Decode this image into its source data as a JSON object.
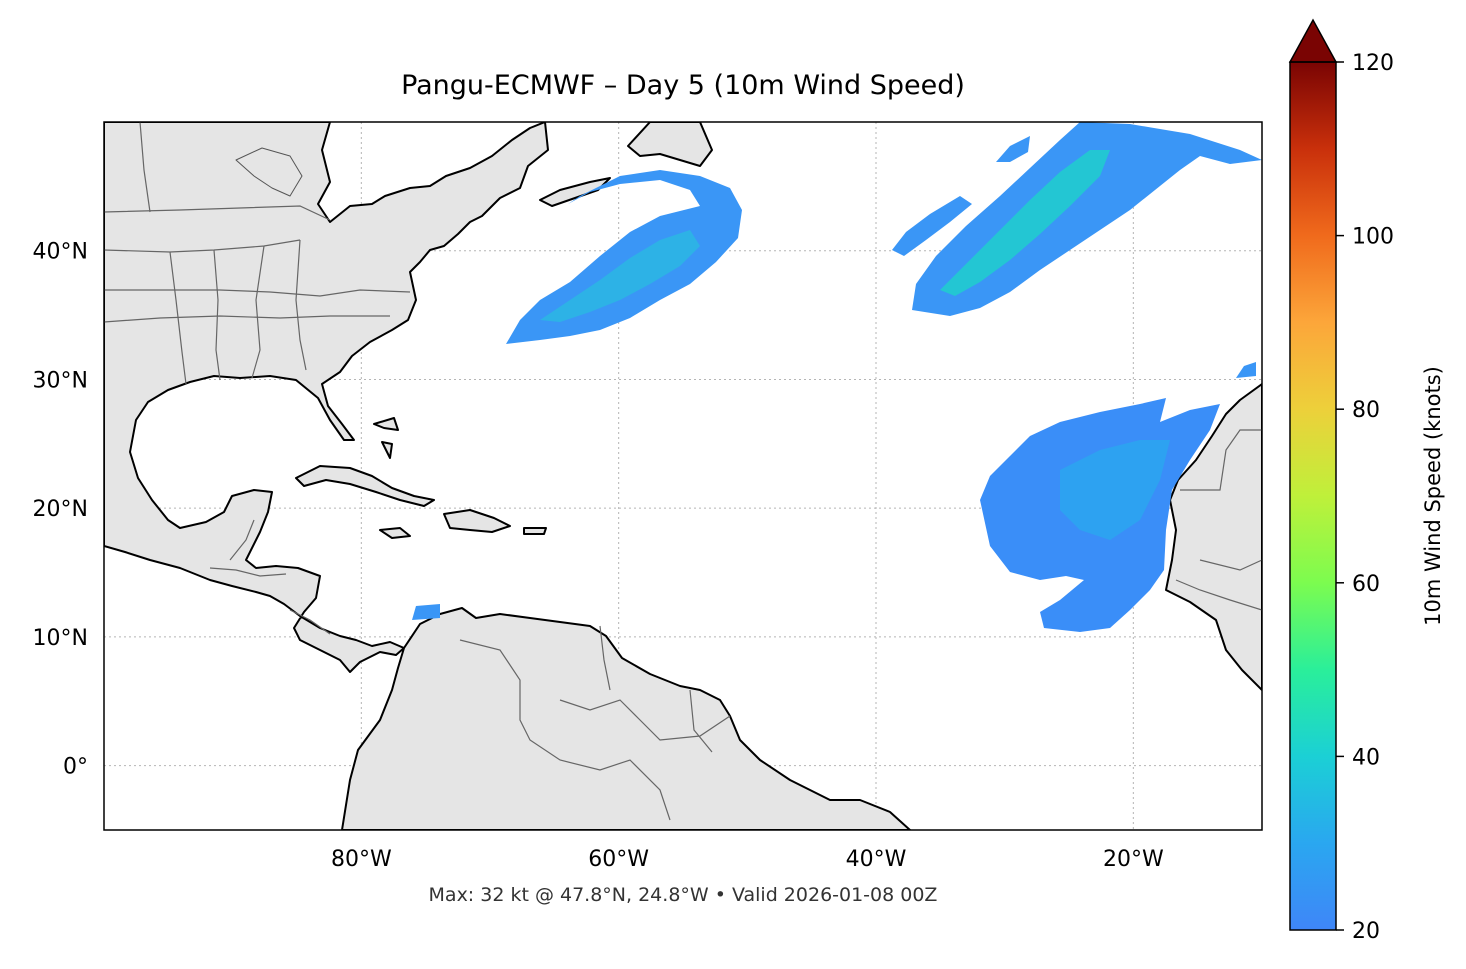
{
  "title": "Pangu-ECMWF – Day 5 (10m Wind Speed)",
  "footnote": "Max: 32 kt @ 47.8°N, 24.8°W • Valid 2026-01-08 00Z",
  "map": {
    "lon_range": [
      -100,
      -10
    ],
    "lat_range": [
      -5,
      50
    ],
    "lat_ticks": [
      {
        "value": 40,
        "label": "40°N"
      },
      {
        "value": 30,
        "label": "30°N"
      },
      {
        "value": 20,
        "label": "20°N"
      },
      {
        "value": 10,
        "label": "10°N"
      },
      {
        "value": 0,
        "label": "0°"
      }
    ],
    "lon_ticks": [
      {
        "value": -80,
        "label": "80°W"
      },
      {
        "value": -60,
        "label": "60°W"
      },
      {
        "value": -40,
        "label": "40°W"
      },
      {
        "value": -20,
        "label": "20°W"
      }
    ],
    "land_color": "#e5e5e5",
    "gridlines": true,
    "wind_areas": [
      {
        "name": "northwest-atlantic-jet",
        "max_kt": 28
      },
      {
        "name": "north-atlantic-jet",
        "max_kt": 32
      },
      {
        "name": "subtropical-east-atlantic",
        "max_kt": 25
      }
    ]
  },
  "colorbar": {
    "label": "10m Wind Speed (knots)",
    "min": 20,
    "max": 120,
    "extend": "max",
    "ticks": [
      {
        "value": 20,
        "label": "20"
      },
      {
        "value": 40,
        "label": "40"
      },
      {
        "value": 60,
        "label": "60"
      },
      {
        "value": 80,
        "label": "80"
      },
      {
        "value": 100,
        "label": "100"
      },
      {
        "value": 120,
        "label": "120"
      }
    ],
    "colormap": "turbo"
  }
}
